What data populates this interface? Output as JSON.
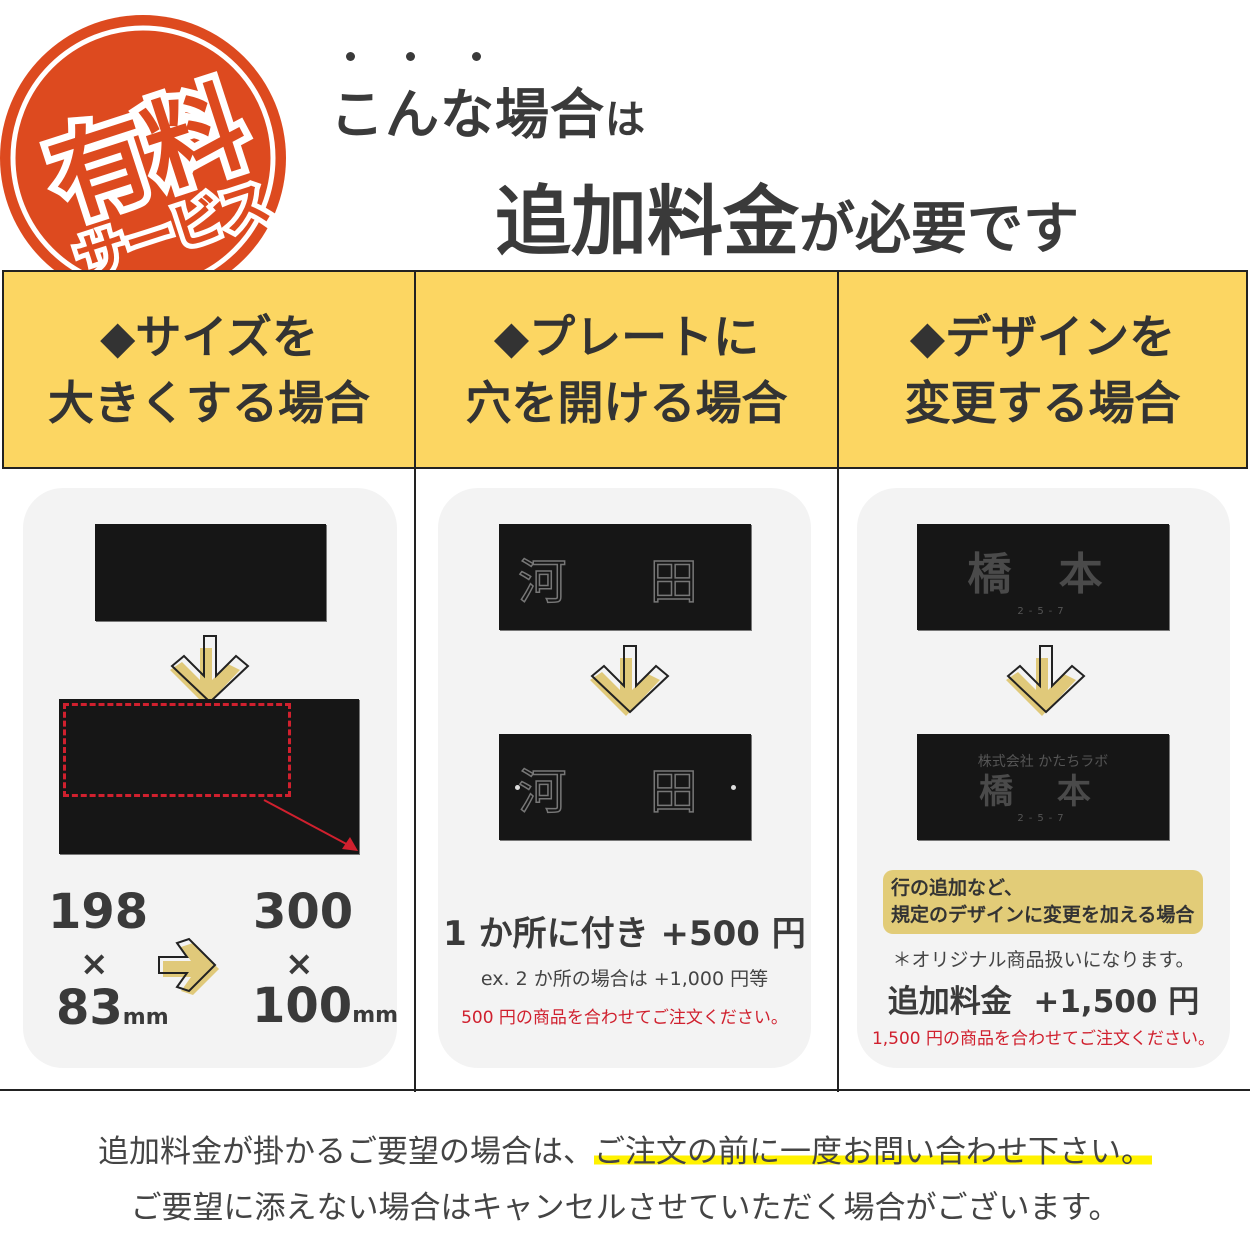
{
  "badge": {
    "line1": "有料",
    "line2": "サービス",
    "color": "#dd4a1f"
  },
  "heading": {
    "line1": "こんな場合",
    "line1_particle": "は",
    "line2": "追加料金",
    "line2_rest": "が必要です"
  },
  "columns": [
    {
      "title_line1": "◆サイズを",
      "title_line2": "大きくする場合",
      "from_w": "198",
      "from_h": "83",
      "to_w": "300",
      "to_h": "100",
      "times": "×",
      "unit": "mm"
    },
    {
      "title_line1": "◆プレートに",
      "title_line2": "穴を開ける場合",
      "plate_text": "河 田",
      "price": "1 か所に付き +500 円",
      "example": "ex. 2 か所の場合は +1,000 円等",
      "note": "500 円の商品を合わせてご注文ください。"
    },
    {
      "title_line1": "◆デザインを",
      "title_line2": "変更する場合",
      "plate_name": "橋 本",
      "plate_number": "2-5-7",
      "plate_company": "株式会社 かたちラボ",
      "box_line1": "行の追加など、",
      "box_line2": "規定のデザインに変更を加える場合",
      "asterisk": "＊オリジナル商品扱いになります。",
      "price_label": "追加料金",
      "price": "+1,500 円",
      "note": "1,500 円の商品を合わせてご注文ください。"
    }
  ],
  "footer": {
    "line1_a": "追加料金が掛かるご要望の場合は、",
    "line1_b": "ご注文の前に一度お問い合わせ下さい。",
    "line2": "ご要望に添えない場合はキャンセルさせていただく場合がございます。"
  },
  "colors": {
    "header_bg": "#fcd662",
    "card_bg": "#f3f3f3",
    "arrow_gold": "#e0c97a",
    "note_red": "#d0202e",
    "highlight": "#fff200"
  }
}
